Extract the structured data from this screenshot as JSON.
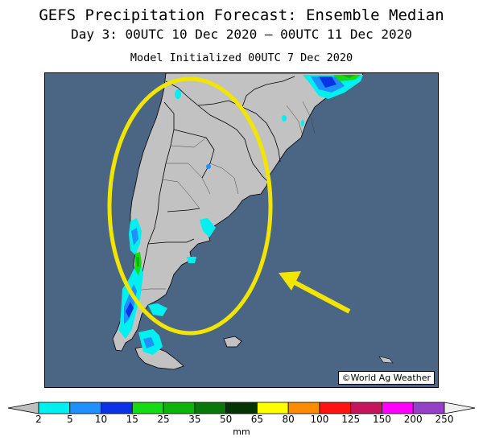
{
  "title": "GEFS Precipitation Forecast: Ensemble Median",
  "subtitle": "Day 3: 00UTC 10 Dec 2020 — 00UTC 11 Dec 2020",
  "init": "Model Initialized 00UTC 7 Dec 2020",
  "credit": "©World Ag Weather",
  "legend": {
    "units": "mm",
    "ticks": [
      "2",
      "5",
      "10",
      "15",
      "25",
      "35",
      "50",
      "65",
      "80",
      "100",
      "125",
      "150",
      "200",
      "250"
    ],
    "colors": {
      "below": "#c0c0c0",
      "bins": [
        "#00f0f0",
        "#1e90ff",
        "#0a32e6",
        "#14dc14",
        "#0cb40c",
        "#087808",
        "#043404",
        "#ffff00",
        "#ff8c00",
        "#ff1414",
        "#c8145a",
        "#ff00ff",
        "#9640c8"
      ],
      "above": "#f0f0f0"
    }
  },
  "map": {
    "ocean_color": "#4b6585",
    "land_color": "#c2c2c2",
    "annotation_color": "#f2e600"
  }
}
